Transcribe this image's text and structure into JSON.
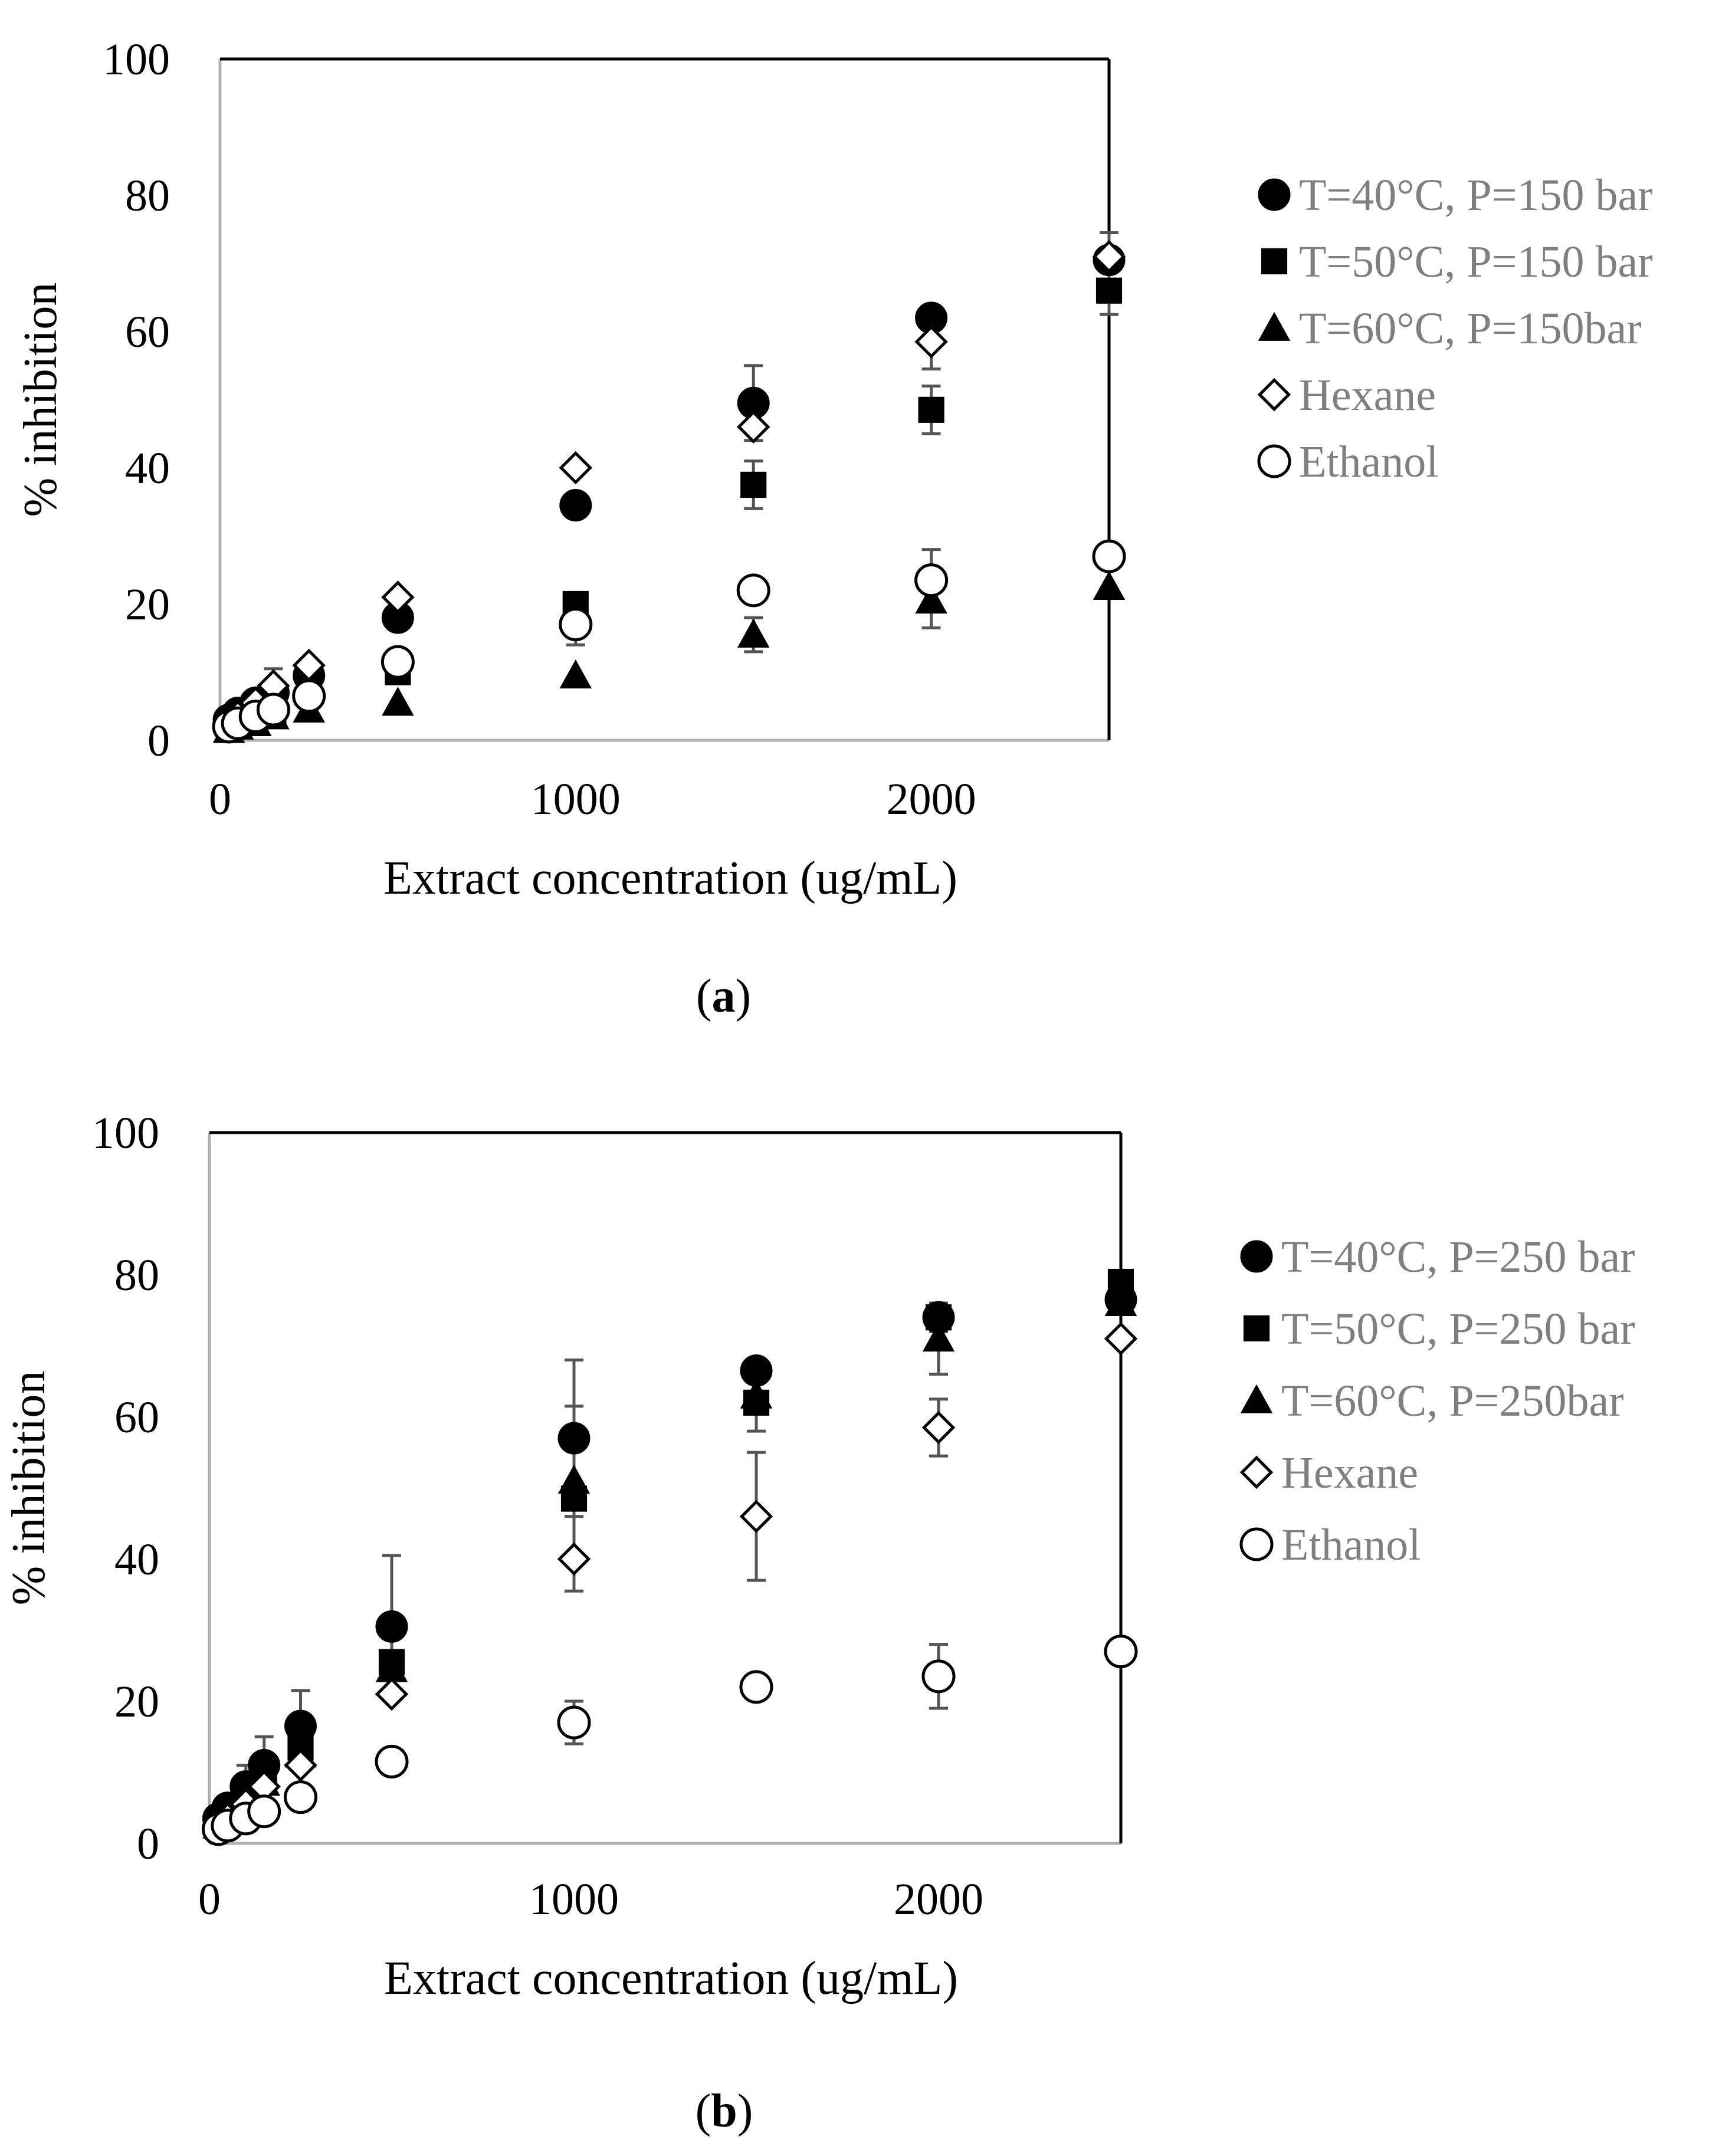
{
  "figure": {
    "panels": [
      {
        "id": "a",
        "caption_letter": "a",
        "legend": [
          {
            "label": "T=40°C, P=150 bar",
            "marker": "circle-filled"
          },
          {
            "label": "T=50°C, P=150 bar",
            "marker": "square-filled"
          },
          {
            "label": "T=60°C, P=150bar",
            "marker": "triangle-filled"
          },
          {
            "label": "Hexane",
            "marker": "diamond-open"
          },
          {
            "label": "Ethanol",
            "marker": "circle-open"
          }
        ]
      },
      {
        "id": "b",
        "caption_letter": "b",
        "legend": [
          {
            "label": "T=40°C, P=250 bar",
            "marker": "circle-filled"
          },
          {
            "label": "T=50°C, P=250 bar",
            "marker": "square-filled"
          },
          {
            "label": "T=60°C, P=250bar",
            "marker": "triangle-filled"
          },
          {
            "label": "Hexane",
            "marker": "diamond-open"
          },
          {
            "label": "Ethanol",
            "marker": "circle-open"
          }
        ]
      }
    ]
  },
  "chart_data": [
    {
      "type": "scatter",
      "panel": "a",
      "title": "",
      "xlabel": "Extract concentration (ug/mL)",
      "ylabel": "% inhibition",
      "xlim": [
        0,
        2500
      ],
      "ylim": [
        0,
        100
      ],
      "xticks": [
        0,
        1000,
        2000
      ],
      "yticks": [
        0,
        20,
        40,
        60,
        80,
        100
      ],
      "grid": false,
      "legend_position": "right",
      "series": [
        {
          "name": "T=40°C, P=150 bar",
          "marker": "circle-filled",
          "x": [
            25,
            50,
            100,
            150,
            250,
            500,
            1000,
            1500,
            2000,
            2500
          ],
          "y": [
            3,
            4,
            5.5,
            7,
            9.5,
            18,
            34.5,
            49.5,
            62,
            70.5
          ],
          "err": [
            0,
            0,
            0,
            0,
            0,
            0,
            0,
            5.5,
            0,
            0
          ]
        },
        {
          "name": "T=50°C, P=150 bar",
          "marker": "square-filled",
          "x": [
            25,
            50,
            100,
            150,
            250,
            500,
            1000,
            1500,
            2000,
            2500
          ],
          "y": [
            2,
            2.5,
            3.5,
            4,
            7,
            10,
            20,
            37.5,
            48.5,
            66
          ],
          "err": [
            0,
            0,
            0,
            0,
            0,
            0,
            0,
            3.5,
            3.5,
            3.5
          ]
        },
        {
          "name": "T=60°C, P=150bar",
          "marker": "triangle-filled",
          "x": [
            25,
            50,
            100,
            150,
            250,
            500,
            1000,
            1500,
            2000,
            2500
          ],
          "y": [
            1.5,
            2,
            2.5,
            3.5,
            4.5,
            5.5,
            9.5,
            15.5,
            20.5,
            22.5
          ],
          "err": [
            0,
            0,
            0,
            0,
            0,
            0,
            0,
            2.5,
            4,
            0
          ]
        },
        {
          "name": "Hexane",
          "marker": "diamond-open",
          "x": [
            25,
            50,
            100,
            150,
            250,
            500,
            1000,
            1500,
            2000,
            2500
          ],
          "y": [
            2.5,
            3.5,
            5.5,
            8,
            11,
            21,
            40,
            46,
            58.5,
            71
          ],
          "err": [
            0,
            0,
            0,
            2.5,
            0,
            0,
            0,
            0,
            4,
            3.5
          ]
        },
        {
          "name": "Ethanol",
          "marker": "circle-open",
          "x": [
            25,
            50,
            100,
            150,
            250,
            500,
            1000,
            1500,
            2000,
            2500
          ],
          "y": [
            2,
            2.5,
            3.5,
            4.5,
            6.5,
            11.5,
            17,
            22,
            23.5,
            27
          ],
          "err": [
            0,
            0,
            0,
            0,
            0,
            0,
            3,
            0,
            4.5,
            0
          ]
        }
      ]
    },
    {
      "type": "scatter",
      "panel": "b",
      "title": "",
      "xlabel": "Extract concentration (ug/mL)",
      "ylabel": "% inhibition",
      "xlim": [
        0,
        2500
      ],
      "ylim": [
        0,
        100
      ],
      "xticks": [
        0,
        1000,
        2000
      ],
      "yticks": [
        0,
        20,
        40,
        60,
        80,
        100
      ],
      "grid": false,
      "legend_position": "right",
      "series": [
        {
          "name": "T=40°C, P=250 bar",
          "marker": "circle-filled",
          "x": [
            25,
            50,
            100,
            150,
            250,
            500,
            1000,
            1500,
            2000,
            2500
          ],
          "y": [
            3.5,
            5,
            8,
            11,
            16.5,
            30.5,
            57,
            66.5,
            74,
            76.5
          ],
          "err": [
            0,
            0,
            3,
            4,
            5,
            10,
            11,
            0,
            2,
            0
          ]
        },
        {
          "name": "T=50°C, P=250 bar",
          "marker": "square-filled",
          "x": [
            25,
            50,
            100,
            150,
            250,
            500,
            1000,
            1500,
            2000,
            2500
          ],
          "y": [
            3,
            4.5,
            7,
            9.5,
            13.5,
            25.5,
            48.5,
            62,
            74,
            79
          ],
          "err": [
            0,
            0,
            0,
            0,
            0,
            0,
            13,
            4,
            2,
            0
          ]
        },
        {
          "name": "T=60°C, P=250bar",
          "marker": "triangle-filled",
          "x": [
            25,
            50,
            100,
            150,
            250,
            500,
            1000,
            1500,
            2000,
            2500
          ],
          "y": [
            2.5,
            4,
            6.5,
            8.5,
            12.5,
            24.5,
            51,
            63,
            71,
            76
          ],
          "err": [
            0,
            0,
            0,
            0,
            0,
            0,
            0,
            0,
            5,
            0
          ]
        },
        {
          "name": "Hexane",
          "marker": "diamond-open",
          "x": [
            25,
            50,
            100,
            150,
            250,
            500,
            1000,
            1500,
            2000,
            2500
          ],
          "y": [
            2.5,
            3.5,
            5.5,
            8,
            11,
            21,
            40,
            46,
            58.5,
            71
          ],
          "err": [
            0,
            0,
            0,
            2.5,
            0,
            0,
            0,
            9,
            4,
            0
          ]
        },
        {
          "name": "Ethanol",
          "marker": "circle-open",
          "x": [
            25,
            50,
            100,
            150,
            250,
            500,
            1000,
            1500,
            2000,
            2500
          ],
          "y": [
            2,
            2.5,
            3.5,
            4.5,
            6.5,
            11.5,
            17,
            22,
            23.5,
            27
          ],
          "err": [
            0,
            0,
            0,
            0,
            0,
            0,
            3,
            0,
            4.5,
            0
          ]
        }
      ]
    }
  ]
}
